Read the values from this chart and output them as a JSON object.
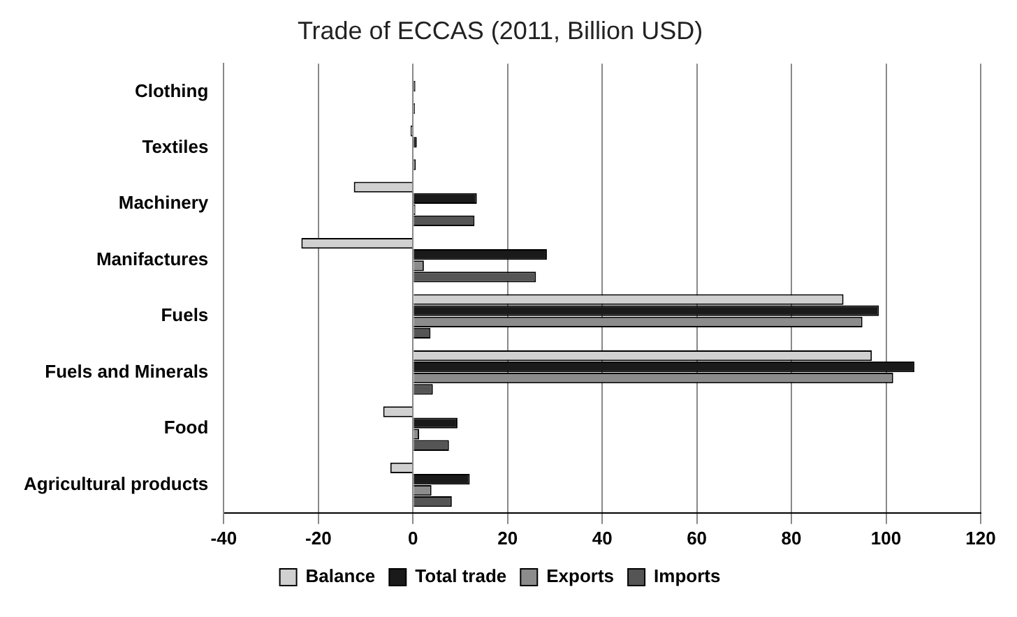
{
  "chart_data": {
    "type": "bar",
    "orientation": "horizontal",
    "title": "Trade of ECCAS (2011, Billion USD)",
    "categories": [
      "Clothing",
      "Textiles",
      "Machinery",
      "Manifactures",
      "Fuels",
      "Fuels and Minerals",
      "Food",
      "Agricultural products"
    ],
    "series": [
      {
        "name": "Balance",
        "color": "#d0d0d0",
        "values": [
          null,
          -0.5,
          -12.5,
          -23.6,
          91,
          97,
          -6.3,
          -4.8
        ]
      },
      {
        "name": "Total trade",
        "color": "#1a1a1a",
        "values": [
          0.5,
          0.8,
          13.5,
          28.3,
          98.5,
          106,
          9.4,
          12
        ]
      },
      {
        "name": "Exports",
        "color": "#8c8c8c",
        "values": [
          0.1,
          null,
          0.5,
          2.3,
          95,
          101.5,
          1.3,
          3.9
        ]
      },
      {
        "name": "Imports",
        "color": "#555555",
        "values": [
          0.4,
          0.6,
          13,
          26,
          3.7,
          4.2,
          7.6,
          8.2
        ]
      }
    ],
    "xlim": [
      -40,
      120
    ],
    "xticks": [
      -40,
      -20,
      0,
      20,
      40,
      60,
      80,
      100,
      120
    ],
    "grid": "x",
    "legend": "bottom"
  }
}
